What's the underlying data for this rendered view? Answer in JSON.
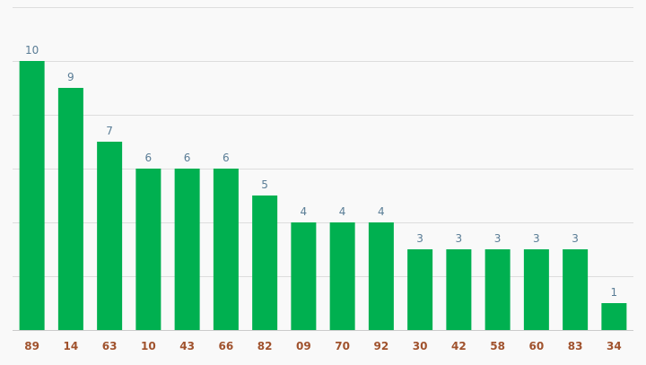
{
  "chart_data": {
    "type": "bar",
    "categories": [
      "89",
      "14",
      "63",
      "10",
      "43",
      "66",
      "82",
      "09",
      "70",
      "92",
      "30",
      "42",
      "58",
      "60",
      "83",
      "34"
    ],
    "values": [
      10,
      9,
      7,
      6,
      6,
      6,
      5,
      4,
      4,
      4,
      3,
      3,
      3,
      3,
      3,
      1
    ],
    "ylim": [
      0,
      12
    ],
    "grid": true,
    "colors": {
      "bar": "#00b050",
      "value_label": "#5a7d96",
      "category_label": "#a0522d",
      "grid": "#dddddd",
      "background": "#f9f9f9"
    }
  }
}
